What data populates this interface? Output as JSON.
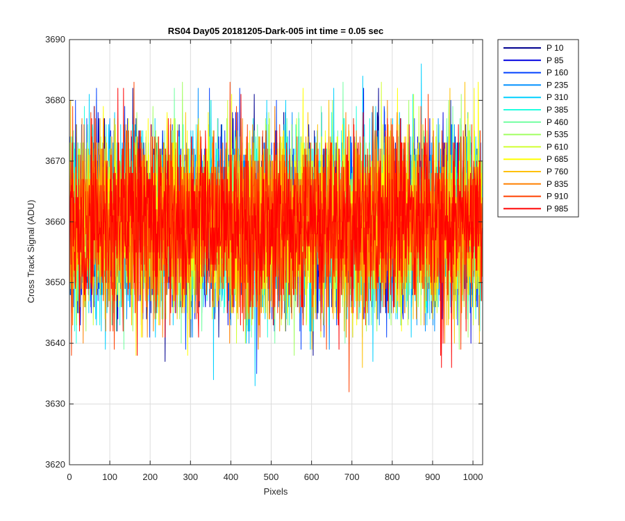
{
  "chart_data": {
    "type": "line",
    "title": "RS04 Day05 20181205-Dark-005 int time = 0.05 sec",
    "xlabel": "Pixels",
    "ylabel": "Cross Track Signal (ADU)",
    "xlim": [
      0,
      1024
    ],
    "ylim": [
      3620,
      3690
    ],
    "xticks": [
      0,
      100,
      200,
      300,
      400,
      500,
      600,
      700,
      800,
      900,
      1000
    ],
    "yticks": [
      3620,
      3630,
      3640,
      3650,
      3660,
      3670,
      3680,
      3690
    ],
    "grid": true,
    "legend_position": "outside-top-right",
    "points_per_series": 1024,
    "series_mean": 3660,
    "series": [
      {
        "name": "P 10",
        "color": "#00008f"
      },
      {
        "name": "P 85",
        "color": "#0000e0"
      },
      {
        "name": "P 160",
        "color": "#0040ff"
      },
      {
        "name": "P 235",
        "color": "#0090ff"
      },
      {
        "name": "P 310",
        "color": "#00d0ff"
      },
      {
        "name": "P 385",
        "color": "#20ffe0"
      },
      {
        "name": "P 460",
        "color": "#70ffa0"
      },
      {
        "name": "P 535",
        "color": "#a0ff60"
      },
      {
        "name": "P 610",
        "color": "#d0ff30"
      },
      {
        "name": "P 685",
        "color": "#ffff00"
      },
      {
        "name": "P 760",
        "color": "#ffc000"
      },
      {
        "name": "P 835",
        "color": "#ff8000"
      },
      {
        "name": "P 910",
        "color": "#ff4000"
      },
      {
        "name": "P 985",
        "color": "#ff0000"
      }
    ]
  }
}
